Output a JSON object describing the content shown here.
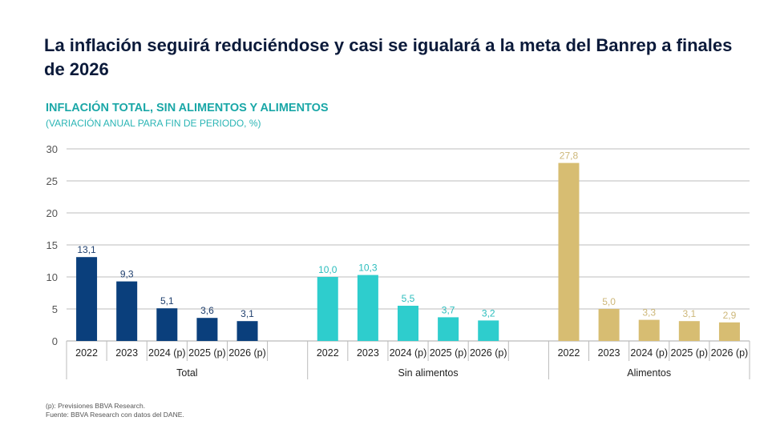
{
  "headline": "La inflación seguirá reduciéndose y casi se igualará a la meta del Banrep a finales de 2026",
  "chart_data": {
    "type": "bar",
    "title": "INFLACIÓN TOTAL, SIN ALIMENTOS Y ALIMENTOS",
    "subtitle": "(VARIACIÓN ANUAL PARA FIN DE PERIODO, %)",
    "ylim": [
      0,
      30
    ],
    "yticks": [
      0,
      5,
      10,
      15,
      20,
      25,
      30
    ],
    "grid": true,
    "categories": [
      "2022",
      "2023",
      "2024 (p)",
      "2025 (p)",
      "2026 (p)"
    ],
    "groups": [
      {
        "name": "Total",
        "color": "#0a3f7c",
        "label_color": "#1f3f6e",
        "values": [
          13.1,
          9.3,
          5.1,
          3.6,
          3.1
        ],
        "labels": [
          "13,1",
          "9,3",
          "5,1",
          "3,6",
          "3,1"
        ]
      },
      {
        "name": "Sin alimentos",
        "color": "#2ecdcd",
        "label_color": "#2bbdbd",
        "values": [
          10.0,
          10.3,
          5.5,
          3.7,
          3.2
        ],
        "labels": [
          "10,0",
          "10,3",
          "5,5",
          "3,7",
          "3,2"
        ]
      },
      {
        "name": "Alimentos",
        "color": "#d7bd72",
        "label_color": "#cdb779",
        "values": [
          27.8,
          5.0,
          3.3,
          3.1,
          2.9
        ],
        "labels": [
          "27,8",
          "5,0",
          "3,3",
          "3,1",
          "2,9"
        ]
      }
    ]
  },
  "notes": {
    "line1": "(p): Previsiones BBVA Research.",
    "line2": "Fuente: BBVA Research con datos del DANE."
  }
}
